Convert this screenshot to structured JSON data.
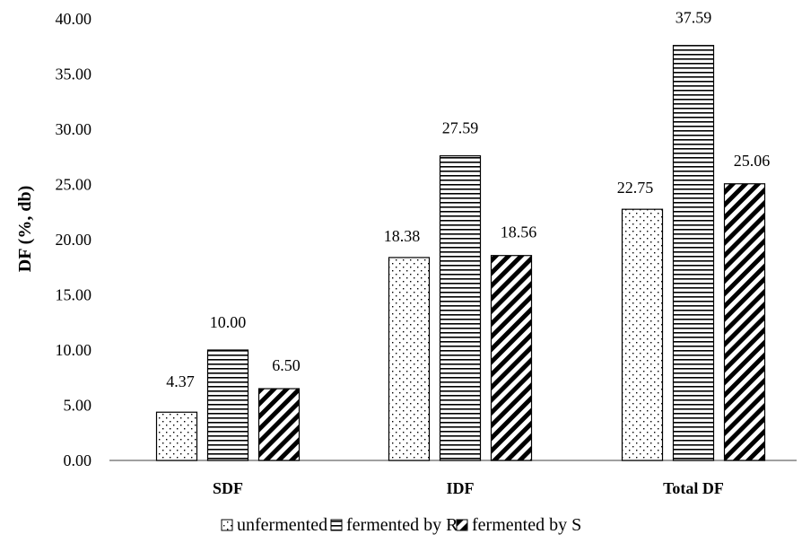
{
  "chart_data": {
    "type": "bar",
    "title": "",
    "xlabel": "",
    "ylabel": "DF (%, db)",
    "ylim": [
      0,
      40
    ],
    "yticks": [
      "0.00",
      "5.00",
      "10.00",
      "15.00",
      "20.00",
      "25.00",
      "30.00",
      "35.00",
      "40.00"
    ],
    "categories": [
      "SDF",
      "IDF",
      "Total DF"
    ],
    "series": [
      {
        "name": "unfermented",
        "values": [
          4.37,
          18.38,
          22.75
        ],
        "labels": [
          "4.37",
          "18.38",
          "22.75"
        ],
        "pattern": "dots"
      },
      {
        "name": "fermented by R",
        "values": [
          10.0,
          27.59,
          37.59
        ],
        "labels": [
          "10.00",
          "27.59",
          "37.59"
        ],
        "pattern": "horizontal-lines"
      },
      {
        "name": "fermented by S",
        "values": [
          6.5,
          18.56,
          25.06
        ],
        "labels": [
          "6.50",
          "18.56",
          "25.06"
        ],
        "pattern": "diagonal-stripes"
      }
    ],
    "grid": false,
    "legend_position": "bottom"
  }
}
